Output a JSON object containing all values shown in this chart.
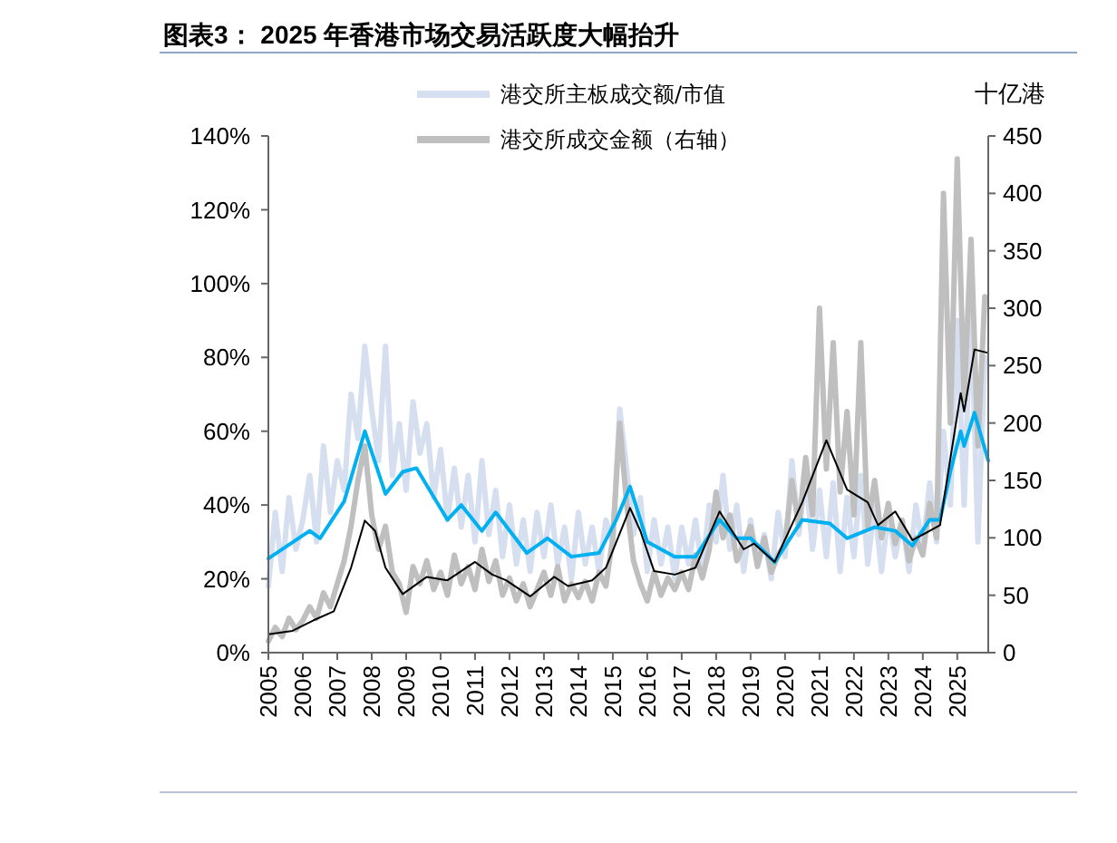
{
  "chart_data": {
    "type": "line",
    "title": "图表3：  2025 年香港市场交易活跃度大幅抬升",
    "y2label": "十亿港",
    "legend": "top",
    "x": [
      2005,
      2005.2,
      2005.4,
      2005.6,
      2005.8,
      2006,
      2006.2,
      2006.4,
      2006.6,
      2006.8,
      2007,
      2007.2,
      2007.4,
      2007.6,
      2007.8,
      2008,
      2008.2,
      2008.4,
      2008.6,
      2008.8,
      2009,
      2009.2,
      2009.4,
      2009.6,
      2009.8,
      2010,
      2010.2,
      2010.4,
      2010.6,
      2010.8,
      2011,
      2011.2,
      2011.4,
      2011.6,
      2011.8,
      2012,
      2012.2,
      2012.4,
      2012.6,
      2012.8,
      2013,
      2013.2,
      2013.4,
      2013.6,
      2013.8,
      2014,
      2014.2,
      2014.4,
      2014.6,
      2014.8,
      2015,
      2015.2,
      2015.4,
      2015.6,
      2015.8,
      2016,
      2016.2,
      2016.4,
      2016.6,
      2016.8,
      2017,
      2017.2,
      2017.4,
      2017.6,
      2017.8,
      2018,
      2018.2,
      2018.4,
      2018.6,
      2018.8,
      2019,
      2019.2,
      2019.4,
      2019.6,
      2019.8,
      2020,
      2020.2,
      2020.4,
      2020.6,
      2020.8,
      2021,
      2021.2,
      2021.4,
      2021.6,
      2021.8,
      2022,
      2022.2,
      2022.4,
      2022.6,
      2022.8,
      2023,
      2023.2,
      2023.4,
      2023.6,
      2023.8,
      2024,
      2024.2,
      2024.4,
      2024.6,
      2024.8,
      2025,
      2025.2,
      2025.4,
      2025.6,
      2025.8
    ],
    "xlim": [
      2005,
      2025.9
    ],
    "xticks": [
      2005,
      2006,
      2007,
      2008,
      2009,
      2010,
      2011,
      2012,
      2013,
      2014,
      2015,
      2016,
      2017,
      2018,
      2019,
      2020,
      2021,
      2022,
      2023,
      2024,
      2025
    ],
    "ylim": [
      0,
      140
    ],
    "yticks": [
      {
        "value": 0,
        "label": "0%"
      },
      {
        "value": 20,
        "label": "20%"
      },
      {
        "value": 40,
        "label": "40%"
      },
      {
        "value": 60,
        "label": "60%"
      },
      {
        "value": 80,
        "label": "80%"
      },
      {
        "value": 100,
        "label": "100%"
      },
      {
        "value": 120,
        "label": "120%"
      },
      {
        "value": 140,
        "label": "140%"
      }
    ],
    "y2lim": [
      0,
      450
    ],
    "y2ticks": [
      0,
      50,
      100,
      150,
      200,
      250,
      300,
      350,
      400,
      450
    ],
    "series": [
      {
        "name": "港交所主板成交额/市值",
        "color": "#d6dff0",
        "values": [
          18,
          38,
          22,
          42,
          28,
          36,
          48,
          30,
          56,
          38,
          52,
          44,
          70,
          58,
          83,
          66,
          52,
          83,
          48,
          62,
          44,
          68,
          54,
          62,
          42,
          55,
          36,
          50,
          34,
          48,
          30,
          52,
          32,
          44,
          26,
          40,
          24,
          36,
          22,
          38,
          26,
          40,
          24,
          34,
          20,
          38,
          24,
          34,
          22,
          36,
          30,
          66,
          50,
          32,
          42,
          22,
          36,
          24,
          34,
          20,
          34,
          24,
          36,
          22,
          40,
          30,
          48,
          28,
          40,
          22,
          36,
          24,
          32,
          20,
          38,
          26,
          52,
          32,
          48,
          28,
          44,
          26,
          46,
          22,
          42,
          26,
          48,
          24,
          40,
          22,
          38,
          26,
          36,
          22,
          40,
          28,
          46,
          30,
          60,
          40,
          90,
          40,
          95,
          30,
          80
        ]
      },
      {
        "name": "港交所成交金额（右轴）",
        "color": "#bfbfbf",
        "axis": "y2",
        "values": [
          10,
          22,
          14,
          30,
          20,
          28,
          40,
          30,
          52,
          40,
          60,
          80,
          110,
          150,
          180,
          120,
          90,
          110,
          70,
          60,
          35,
          75,
          60,
          80,
          55,
          70,
          50,
          85,
          60,
          75,
          55,
          90,
          62,
          80,
          50,
          65,
          45,
          60,
          40,
          55,
          70,
          50,
          75,
          45,
          60,
          48,
          62,
          45,
          70,
          58,
          100,
          200,
          130,
          80,
          60,
          45,
          70,
          50,
          65,
          55,
          70,
          55,
          85,
          65,
          90,
          140,
          100,
          120,
          80,
          95,
          110,
          75,
          100,
          70,
          85,
          95,
          150,
          110,
          170,
          120,
          300,
          160,
          270,
          140,
          210,
          120,
          270,
          110,
          150,
          100,
          130,
          95,
          115,
          80,
          100,
          85,
          130,
          100,
          400,
          200,
          430,
          220,
          360,
          180,
          310
        ]
      },
      {
        "color": "#00b0f0",
        "x": [
          2005,
          2006.2,
          2006.5,
          2007.2,
          2007.8,
          2008.4,
          2008.9,
          2009.3,
          2010.2,
          2010.6,
          2011.2,
          2011.6,
          2012.5,
          2013.1,
          2013.8,
          2014.6,
          2015.1,
          2015.5,
          2016,
          2016.8,
          2017.4,
          2018.1,
          2018.6,
          2019,
          2019.7,
          2020.5,
          2021.3,
          2021.8,
          2022.6,
          2023.2,
          2023.7,
          2024.2,
          2024.5,
          2024.8,
          2025.1,
          2025.2,
          2025.5,
          2025.9
        ],
        "values": [
          25.5,
          33,
          31,
          41,
          60,
          43,
          49,
          50,
          36,
          40,
          33,
          38,
          27,
          31,
          26,
          27,
          36,
          45,
          30,
          26,
          26,
          36,
          31,
          31,
          24.5,
          36,
          35,
          31,
          34,
          33,
          29,
          36,
          36,
          49,
          60,
          56,
          65,
          52
        ]
      },
      {
        "color": "#000000",
        "axis": "y2",
        "x": [
          2005,
          2005.7,
          2006.3,
          2006.9,
          2007.4,
          2007.8,
          2008.1,
          2008.4,
          2008.9,
          2009.6,
          2010.2,
          2011,
          2011.5,
          2011.9,
          2012.6,
          2013.3,
          2013.7,
          2014.4,
          2014.8,
          2015.5,
          2015.8,
          2016.2,
          2016.8,
          2017.4,
          2018.1,
          2018.8,
          2019.1,
          2019.7,
          2020.5,
          2021.2,
          2021.8,
          2022.4,
          2022.7,
          2023.2,
          2023.7,
          2024.2,
          2024.5,
          2024.7,
          2025.1,
          2025.2,
          2025.5,
          2025.9
        ],
        "values": [
          16,
          19,
          28,
          36,
          74,
          115,
          106,
          74,
          51,
          66,
          63,
          79,
          68,
          63,
          49,
          66,
          58,
          63,
          74,
          126,
          106,
          71,
          68,
          74,
          123,
          90,
          95,
          79,
          131,
          185,
          142,
          131,
          111,
          123,
          98,
          106,
          111,
          150,
          226,
          210,
          264,
          261
        ]
      }
    ]
  }
}
